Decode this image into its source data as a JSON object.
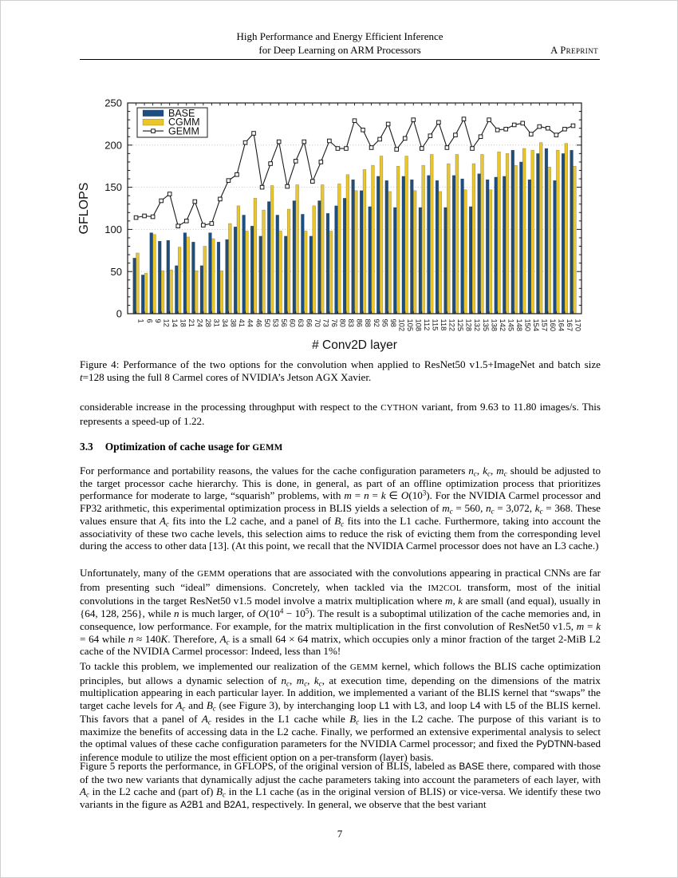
{
  "header": {
    "title_line1": "High Performance and Energy Efficient Inference",
    "title_line2": "for Deep Learning on ARM Processors",
    "tag": "A Preprint"
  },
  "chart_data": {
    "type": "bar",
    "title": "",
    "xlabel": "# Conv2D layer",
    "ylabel": "GFLOPS",
    "ylim": [
      0,
      250
    ],
    "yticks": [
      0,
      50,
      100,
      150,
      200,
      250
    ],
    "grid": "horizontal-dotted",
    "legend_position": "top-left",
    "categories": [
      "1",
      "6",
      "9",
      "12",
      "14",
      "18",
      "21",
      "24",
      "28",
      "31",
      "34",
      "38",
      "41",
      "44",
      "46",
      "50",
      "53",
      "56",
      "60",
      "63",
      "66",
      "70",
      "73",
      "76",
      "80",
      "83",
      "86",
      "88",
      "92",
      "95",
      "98",
      "102",
      "105",
      "108",
      "112",
      "115",
      "118",
      "122",
      "125",
      "128",
      "132",
      "135",
      "138",
      "142",
      "145",
      "148",
      "150",
      "154",
      "157",
      "160",
      "164",
      "167",
      "170"
    ],
    "series": [
      {
        "name": "BASE",
        "type": "bar",
        "color": "#1e4d80",
        "values": [
          66,
          46,
          96,
          86,
          87,
          57,
          96,
          85,
          57,
          96,
          85,
          88,
          103,
          117,
          104,
          92,
          133,
          117,
          92,
          134,
          118,
          92,
          134,
          119,
          128,
          137,
          159,
          146,
          127,
          163,
          158,
          126,
          163,
          159,
          126,
          164,
          158,
          126,
          164,
          160,
          127,
          166,
          159,
          162,
          163,
          194,
          180,
          159,
          190,
          196,
          158,
          190,
          194
        ]
      },
      {
        "name": "CGMM",
        "type": "bar",
        "color": "#e9c52e",
        "values": [
          72,
          48,
          94,
          51,
          52,
          79,
          91,
          51,
          80,
          89,
          51,
          107,
          128,
          98,
          137,
          123,
          152,
          98,
          124,
          153,
          98,
          128,
          153,
          98,
          154,
          165,
          146,
          171,
          176,
          187,
          145,
          175,
          187,
          146,
          176,
          189,
          145,
          178,
          189,
          147,
          178,
          189,
          147,
          192,
          190,
          176,
          196,
          194,
          203,
          174,
          194,
          202,
          175
        ]
      },
      {
        "name": "GEMM",
        "type": "line",
        "color": "#1a1a1a",
        "marker": "open-square",
        "values": [
          114,
          116,
          115,
          134,
          142,
          104,
          110,
          133,
          105,
          107,
          136,
          158,
          165,
          203,
          214,
          150,
          178,
          204,
          151,
          181,
          204,
          157,
          180,
          205,
          196,
          196,
          229,
          218,
          197,
          207,
          225,
          195,
          208,
          230,
          196,
          211,
          227,
          197,
          212,
          231,
          196,
          210,
          230,
          218,
          219,
          224,
          226,
          213,
          222,
          220,
          212,
          219,
          223
        ]
      }
    ]
  },
  "figure": {
    "caption_segments": [
      {
        "t": "Figure 4: Performance of the two options for the convolution when applied to ResNet50 v1.5+ImageNet and batch size "
      },
      {
        "t": "t",
        "s": "i"
      },
      {
        "t": "=128 using the full 8 Carmel cores of NVIDIA’s Jetson AGX Xavier."
      }
    ]
  },
  "body": {
    "para_intro": [
      {
        "t": "considerable increase in the processing throughput with respect to the "
      },
      {
        "t": "CYTHON",
        "s": "sc"
      },
      {
        "t": " variant, from 9.63 to 11.80 images/s. This represents a speed-up of 1.22."
      }
    ],
    "section": {
      "number": "3.3",
      "title_segments": [
        {
          "t": "Optimization of cache usage for "
        },
        {
          "t": "GEMM",
          "s": "sc"
        }
      ]
    },
    "para1": [
      {
        "t": "For performance and portability reasons, the values for the cache configuration parameters "
      },
      {
        "t": "n",
        "s": "i"
      },
      {
        "t": "c",
        "s": "sub"
      },
      {
        "t": ", "
      },
      {
        "t": "k",
        "s": "i"
      },
      {
        "t": "c",
        "s": "sub"
      },
      {
        "t": ", "
      },
      {
        "t": "m",
        "s": "i"
      },
      {
        "t": "c",
        "s": "sub"
      },
      {
        "t": " should be adjusted to the target processor cache hierarchy. This is done, in general, as part of an offline optimization process that prioritizes performance for moderate to large, “squarish” problems, with "
      },
      {
        "t": "m",
        "s": "i"
      },
      {
        "t": " = "
      },
      {
        "t": "n",
        "s": "i"
      },
      {
        "t": " = "
      },
      {
        "t": "k",
        "s": "i"
      },
      {
        "t": " ∈ "
      },
      {
        "t": "O",
        "s": "i"
      },
      {
        "t": "(10"
      },
      {
        "t": "3",
        "s": "sup"
      },
      {
        "t": "). For the NVIDIA Carmel processor and FP32 arithmetic, this experimental optimization process in BLIS yields a selection of "
      },
      {
        "t": "m",
        "s": "i"
      },
      {
        "t": "c",
        "s": "sub"
      },
      {
        "t": " = 560, "
      },
      {
        "t": "n",
        "s": "i"
      },
      {
        "t": "c",
        "s": "sub"
      },
      {
        "t": " = 3,072, "
      },
      {
        "t": "k",
        "s": "i"
      },
      {
        "t": "c",
        "s": "sub"
      },
      {
        "t": " = 368. These values ensure that "
      },
      {
        "t": "A",
        "s": "i"
      },
      {
        "t": "c",
        "s": "sub"
      },
      {
        "t": " fits into the L2 cache, and a panel of "
      },
      {
        "t": "B",
        "s": "i"
      },
      {
        "t": "c",
        "s": "sub"
      },
      {
        "t": " fits into the L1 cache. Furthermore, taking into account the associativity of these two cache levels, this selection aims to reduce the risk of evicting them from the corresponding level during the access to other data [13]. (At this point, we recall that the NVIDIA Carmel processor does not have an L3 cache.)"
      }
    ],
    "para2": [
      {
        "t": "Unfortunately, many of the "
      },
      {
        "t": "GEMM",
        "s": "sc"
      },
      {
        "t": " operations that are associated with the convolutions appearing in practical CNNs are far from presenting such “ideal” dimensions. Concretely, when tackled via the "
      },
      {
        "t": "IM2COL",
        "s": "sc"
      },
      {
        "t": " transform, most of the initial convolutions in the target ResNet50 v1.5 model involve a matrix multiplication where "
      },
      {
        "t": "m, k",
        "s": "i"
      },
      {
        "t": " are small (and equal), usually in {64, 128, 256}, while "
      },
      {
        "t": "n",
        "s": "i"
      },
      {
        "t": " is much larger, of "
      },
      {
        "t": "O",
        "s": "i"
      },
      {
        "t": "(10"
      },
      {
        "t": "4",
        "s": "sup"
      },
      {
        "t": " − 10"
      },
      {
        "t": "5",
        "s": "sup"
      },
      {
        "t": "). The result is a suboptimal utilization of the cache memories and, in consequence, low performance. For example, for the matrix multiplication in the first convolution of ResNet50 v1.5, "
      },
      {
        "t": "m",
        "s": "i"
      },
      {
        "t": " = "
      },
      {
        "t": "k",
        "s": "i"
      },
      {
        "t": " = 64 while "
      },
      {
        "t": "n",
        "s": "i"
      },
      {
        "t": " ≈ 140"
      },
      {
        "t": "K",
        "s": "i"
      },
      {
        "t": ". Therefore, "
      },
      {
        "t": "A",
        "s": "i"
      },
      {
        "t": "c",
        "s": "sub"
      },
      {
        "t": " is a small 64 × 64 matrix, which occupies only a minor fraction of the target 2-MiB L2 cache of the NVIDIA Carmel processor: Indeed, less than 1%!"
      }
    ],
    "para3": [
      {
        "t": "To tackle this problem, we implemented our realization of the "
      },
      {
        "t": "GEMM",
        "s": "sc"
      },
      {
        "t": " kernel, which follows the BLIS cache optimization principles, but allows a dynamic selection of "
      },
      {
        "t": "n",
        "s": "i"
      },
      {
        "t": "c",
        "s": "sub"
      },
      {
        "t": ", "
      },
      {
        "t": "m",
        "s": "i"
      },
      {
        "t": "c",
        "s": "sub"
      },
      {
        "t": ", "
      },
      {
        "t": "k",
        "s": "i"
      },
      {
        "t": "c",
        "s": "sub"
      },
      {
        "t": ", at execution time, depending on the dimensions of the matrix multiplication appearing in each particular layer. In addition, we implemented a variant of the BLIS kernel that “swaps” the target cache levels for "
      },
      {
        "t": "A",
        "s": "i"
      },
      {
        "t": "c",
        "s": "sub"
      },
      {
        "t": " and "
      },
      {
        "t": "B",
        "s": "i"
      },
      {
        "t": "c",
        "s": "sub"
      },
      {
        "t": " (see Figure 3), by interchanging loop "
      },
      {
        "t": "L1",
        "s": "sans"
      },
      {
        "t": " with "
      },
      {
        "t": "L3",
        "s": "sans"
      },
      {
        "t": ", and loop "
      },
      {
        "t": "L4",
        "s": "sans"
      },
      {
        "t": " with "
      },
      {
        "t": "L5",
        "s": "sans"
      },
      {
        "t": " of the BLIS kernel. This favors that a panel of "
      },
      {
        "t": "A",
        "s": "i"
      },
      {
        "t": "c",
        "s": "sub"
      },
      {
        "t": " resides in the L1 cache while "
      },
      {
        "t": "B",
        "s": "i"
      },
      {
        "t": "c",
        "s": "sub"
      },
      {
        "t": " lies in the L2 cache. The purpose of this variant is to maximize the benefits of accessing data in the L2 cache. Finally, we performed an extensive experimental analysis to select the optimal values of these cache configuration parameters for the NVIDIA Carmel processor; and fixed the "
      },
      {
        "t": "PyDTNN",
        "s": "sans"
      },
      {
        "t": "-based inference module to utilize the most efficient option on a per-transform (layer) basis."
      }
    ],
    "para4": [
      {
        "t": "Figure 5 reports the performance, in GFLOPS, of the original version of BLIS, labeled as "
      },
      {
        "t": "BASE",
        "s": "sans"
      },
      {
        "t": " there, compared with those of the two new variants that dynamically adjust the cache parameters taking into account the parameters of each layer, with "
      },
      {
        "t": "A",
        "s": "i"
      },
      {
        "t": "c",
        "s": "sub"
      },
      {
        "t": " in the L2 cache and (part of) "
      },
      {
        "t": "B",
        "s": "i"
      },
      {
        "t": "c",
        "s": "sub"
      },
      {
        "t": " in the L1 cache (as in the original version of BLIS) or vice-versa. We identify these two variants in the figure as "
      },
      {
        "t": "A2B1",
        "s": "sans"
      },
      {
        "t": " and "
      },
      {
        "t": "B2A1",
        "s": "sans"
      },
      {
        "t": ", respectively. In general, we observe that the best variant"
      }
    ]
  },
  "footer": {
    "page_number": "7"
  }
}
